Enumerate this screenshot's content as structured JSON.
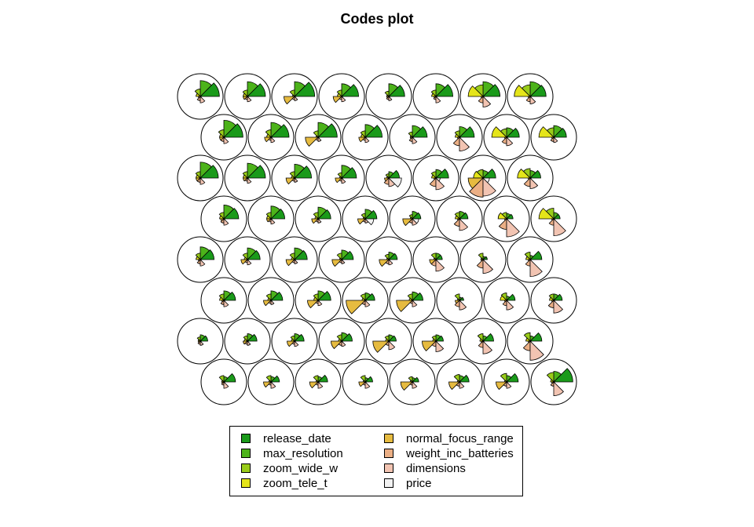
{
  "title": "Codes plot",
  "chart_data": {
    "type": "segment-star-som-codes",
    "title": "Codes plot",
    "grid": {
      "rows": 8,
      "cols": 8,
      "topology": "hexagonal"
    },
    "variables": [
      {
        "name": "release_date",
        "color": "#1a9a1a"
      },
      {
        "name": "max_resolution",
        "color": "#4cb31a"
      },
      {
        "name": "zoom_wide_w",
        "color": "#99cc1a"
      },
      {
        "name": "zoom_tele_t",
        "color": "#e5e51a"
      },
      {
        "name": "normal_focus_range",
        "color": "#e6bb40"
      },
      {
        "name": "weight_inc_batteries",
        "color": "#ebaf85"
      },
      {
        "name": "dimensions",
        "color": "#f2c4b2"
      },
      {
        "name": "price",
        "color": "#f2f2f2"
      }
    ],
    "rows_top_to_bottom": [
      [
        [
          0.9,
          0.75,
          0.35,
          0.2,
          0.1,
          0.2,
          0.3,
          0.05
        ],
        [
          0.85,
          0.7,
          0.3,
          0.2,
          0.2,
          0.15,
          0.25,
          0.05
        ],
        [
          0.95,
          0.7,
          0.3,
          0.1,
          0.5,
          0.15,
          0.2,
          0.05
        ],
        [
          0.8,
          0.6,
          0.3,
          0.2,
          0.4,
          0.15,
          0.25,
          0.05
        ],
        [
          0.75,
          0.6,
          0.25,
          0.1,
          0.1,
          0.15,
          0.2,
          0.05
        ],
        [
          0.8,
          0.6,
          0.3,
          0.2,
          0.1,
          0.15,
          0.3,
          0.05
        ],
        [
          0.8,
          0.7,
          0.55,
          0.7,
          0.1,
          0.3,
          0.5,
          0.05
        ],
        [
          0.75,
          0.7,
          0.55,
          0.75,
          0.1,
          0.25,
          0.35,
          0.05
        ]
      ],
      [
        [
          0.9,
          0.8,
          0.35,
          0.2,
          0.2,
          0.2,
          0.3,
          0.05
        ],
        [
          0.85,
          0.7,
          0.35,
          0.2,
          0.3,
          0.15,
          0.25,
          0.05
        ],
        [
          0.9,
          0.7,
          0.3,
          0.1,
          0.6,
          0.15,
          0.2,
          0.05
        ],
        [
          0.8,
          0.6,
          0.3,
          0.2,
          0.3,
          0.15,
          0.25,
          0.05
        ],
        [
          0.7,
          0.55,
          0.25,
          0.1,
          0.1,
          0.2,
          0.3,
          0.05
        ],
        [
          0.7,
          0.5,
          0.3,
          0.2,
          0.1,
          0.4,
          0.65,
          0.05
        ],
        [
          0.6,
          0.45,
          0.4,
          0.7,
          0.1,
          0.3,
          0.4,
          0.05
        ],
        [
          0.6,
          0.55,
          0.45,
          0.7,
          0.1,
          0.2,
          0.25,
          0.05
        ]
      ],
      [
        [
          0.85,
          0.75,
          0.3,
          0.2,
          0.2,
          0.2,
          0.3,
          0.05
        ],
        [
          0.85,
          0.7,
          0.3,
          0.2,
          0.2,
          0.15,
          0.25,
          0.05
        ],
        [
          0.8,
          0.65,
          0.3,
          0.15,
          0.4,
          0.15,
          0.2,
          0.05
        ],
        [
          0.7,
          0.6,
          0.25,
          0.1,
          0.3,
          0.15,
          0.25,
          0.05
        ],
        [
          0.5,
          0.3,
          0.2,
          0.1,
          0.2,
          0.3,
          0.4,
          0.6
        ],
        [
          0.6,
          0.4,
          0.3,
          0.2,
          0.1,
          0.4,
          0.55,
          0.2
        ],
        [
          0.6,
          0.35,
          0.4,
          0.45,
          0.7,
          0.9,
          0.85,
          0.3
        ],
        [
          0.5,
          0.35,
          0.45,
          0.6,
          0.1,
          0.4,
          0.5,
          0.05
        ]
      ],
      [
        [
          0.7,
          0.65,
          0.3,
          0.2,
          0.15,
          0.2,
          0.3,
          0.05
        ],
        [
          0.65,
          0.6,
          0.3,
          0.2,
          0.2,
          0.15,
          0.25,
          0.05
        ],
        [
          0.6,
          0.55,
          0.3,
          0.15,
          0.3,
          0.15,
          0.2,
          0.05
        ],
        [
          0.55,
          0.45,
          0.25,
          0.1,
          0.35,
          0.15,
          0.2,
          0.4
        ],
        [
          0.4,
          0.35,
          0.2,
          0.1,
          0.45,
          0.2,
          0.3,
          0.3
        ],
        [
          0.4,
          0.35,
          0.3,
          0.2,
          0.1,
          0.35,
          0.55,
          0.05
        ],
        [
          0.3,
          0.25,
          0.3,
          0.4,
          0.1,
          0.5,
          0.85,
          0.05
        ],
        [
          0.3,
          0.3,
          0.5,
          0.7,
          0.1,
          0.3,
          0.8,
          0.05
        ]
      ],
      [
        [
          0.65,
          0.6,
          0.3,
          0.2,
          0.1,
          0.2,
          0.3,
          0.05
        ],
        [
          0.6,
          0.55,
          0.3,
          0.15,
          0.3,
          0.15,
          0.25,
          0.05
        ],
        [
          0.6,
          0.55,
          0.3,
          0.15,
          0.4,
          0.15,
          0.2,
          0.05
        ],
        [
          0.55,
          0.45,
          0.3,
          0.1,
          0.45,
          0.15,
          0.2,
          0.05
        ],
        [
          0.4,
          0.35,
          0.25,
          0.1,
          0.45,
          0.2,
          0.25,
          0.05
        ],
        [
          0.3,
          0.3,
          0.3,
          0.1,
          0.3,
          0.3,
          0.55,
          0.05
        ],
        [
          0.2,
          0.15,
          0.3,
          0.1,
          0.1,
          0.4,
          0.65,
          0.05
        ],
        [
          0.55,
          0.2,
          0.35,
          0.2,
          0.1,
          0.3,
          0.8,
          0.05
        ]
      ],
      [
        [
          0.55,
          0.45,
          0.3,
          0.2,
          0.1,
          0.2,
          0.3,
          0.05
        ],
        [
          0.55,
          0.45,
          0.3,
          0.15,
          0.35,
          0.15,
          0.2,
          0.05
        ],
        [
          0.6,
          0.45,
          0.3,
          0.2,
          0.5,
          0.15,
          0.25,
          0.05
        ],
        [
          0.45,
          0.35,
          0.3,
          0.15,
          0.9,
          0.2,
          0.3,
          0.05
        ],
        [
          0.5,
          0.4,
          0.3,
          0.15,
          0.75,
          0.15,
          0.3,
          0.05
        ],
        [
          0.2,
          0.15,
          0.3,
          0.1,
          0.2,
          0.3,
          0.45,
          0.05
        ],
        [
          0.4,
          0.2,
          0.35,
          0.3,
          0.1,
          0.25,
          0.45,
          0.05
        ],
        [
          0.4,
          0.3,
          0.3,
          0.2,
          0.1,
          0.35,
          0.6,
          0.05
        ]
      ],
      [
        [
          0.35,
          0.3,
          0.2,
          0.1,
          0.1,
          0.15,
          0.2,
          0.05
        ],
        [
          0.45,
          0.35,
          0.25,
          0.15,
          0.2,
          0.15,
          0.2,
          0.05
        ],
        [
          0.45,
          0.35,
          0.25,
          0.15,
          0.35,
          0.15,
          0.25,
          0.05
        ],
        [
          0.5,
          0.4,
          0.3,
          0.15,
          0.5,
          0.2,
          0.25,
          0.05
        ],
        [
          0.35,
          0.3,
          0.25,
          0.15,
          0.75,
          0.2,
          0.4,
          0.05
        ],
        [
          0.35,
          0.3,
          0.25,
          0.15,
          0.65,
          0.25,
          0.5,
          0.05
        ],
        [
          0.5,
          0.25,
          0.35,
          0.15,
          0.1,
          0.3,
          0.6,
          0.05
        ],
        [
          0.55,
          0.25,
          0.4,
          0.2,
          0.1,
          0.45,
          0.9,
          0.05
        ]
      ],
      [
        [
          0.55,
          0.25,
          0.3,
          0.1,
          0.1,
          0.15,
          0.3,
          0.05
        ],
        [
          0.4,
          0.25,
          0.3,
          0.1,
          0.35,
          0.15,
          0.3,
          0.05
        ],
        [
          0.45,
          0.25,
          0.3,
          0.1,
          0.4,
          0.15,
          0.3,
          0.05
        ],
        [
          0.35,
          0.2,
          0.3,
          0.1,
          0.3,
          0.15,
          0.3,
          0.05
        ],
        [
          0.3,
          0.2,
          0.25,
          0.1,
          0.55,
          0.15,
          0.3,
          0.05
        ],
        [
          0.45,
          0.3,
          0.35,
          0.1,
          0.5,
          0.2,
          0.3,
          0.05
        ],
        [
          0.55,
          0.3,
          0.4,
          0.1,
          0.5,
          0.2,
          0.3,
          0.05
        ],
        [
          0.9,
          0.5,
          0.45,
          0.15,
          0.1,
          0.2,
          0.65,
          0.05
        ]
      ]
    ]
  },
  "legend": {
    "items": [
      {
        "label": "release_date",
        "color": "#1a9a1a"
      },
      {
        "label": "max_resolution",
        "color": "#4cb31a"
      },
      {
        "label": "zoom_wide_w",
        "color": "#99cc1a"
      },
      {
        "label": "zoom_tele_t",
        "color": "#e5e51a"
      },
      {
        "label": "normal_focus_range",
        "color": "#e6bb40"
      },
      {
        "label": "weight_inc_batteries",
        "color": "#ebaf85"
      },
      {
        "label": "dimensions",
        "color": "#f2c4b2"
      },
      {
        "label": "price",
        "color": "#f2f2f2"
      }
    ]
  }
}
